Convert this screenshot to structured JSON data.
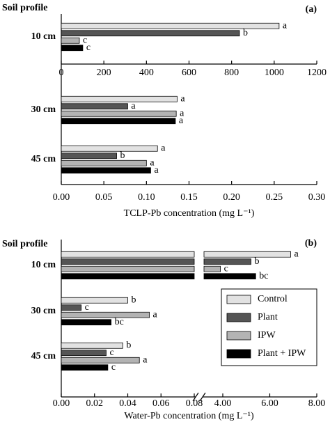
{
  "chart_data": [
    {
      "type": "bar",
      "orientation": "horizontal",
      "title": "(a)",
      "ylabel": "Soil profile",
      "xlabel": "TCLP-Pb concentration (mg L⁻¹)",
      "categories": [
        "10 cm",
        "30 cm",
        "45 cm"
      ],
      "category_axis": [
        "x2",
        "x",
        "x"
      ],
      "xlim": [
        0,
        0.3
      ],
      "xticks": [
        {
          "value": 0,
          "label": "0.00"
        },
        {
          "value": 0.05,
          "label": "0.05"
        },
        {
          "value": 0.1,
          "label": "0.10"
        },
        {
          "value": 0.15,
          "label": "0.15"
        },
        {
          "value": 0.2,
          "label": "0.20"
        },
        {
          "value": 0.25,
          "label": "0.25"
        },
        {
          "value": 0.3,
          "label": "0.30"
        }
      ],
      "x2lim": [
        0,
        1200
      ],
      "x2ticks": [
        0,
        200,
        400,
        600,
        800,
        1000,
        1200
      ],
      "series": [
        {
          "color": "#e2e2e2",
          "values": [
            1023,
            0.136,
            0.113
          ],
          "letters": [
            "a",
            "a",
            "a"
          ]
        },
        {
          "color": "#555555",
          "values": [
            837,
            0.078,
            0.065
          ],
          "letters": [
            "b",
            "a",
            "b"
          ]
        },
        {
          "color": "#b3b3b3",
          "values": [
            85,
            0.135,
            0.1
          ],
          "letters": [
            "c",
            "a",
            "a"
          ]
        },
        {
          "color": "#000000",
          "values": [
            101,
            0.134,
            0.105
          ],
          "letters": [
            "c",
            "a",
            "a"
          ]
        }
      ]
    },
    {
      "type": "bar",
      "orientation": "horizontal",
      "title": "(b)",
      "ylabel": "Soil profile",
      "xlabel": "Water-Pb concentration (mg L⁻¹)",
      "categories": [
        "10 cm",
        "30 cm",
        "45 cm"
      ],
      "category_axis": [
        "x2",
        "x",
        "x"
      ],
      "broken_axis": true,
      "xlim": [
        0,
        0.08
      ],
      "xticks": [
        {
          "value": 0,
          "label": "0.00"
        },
        {
          "value": 0.02,
          "label": "0.02"
        },
        {
          "value": 0.04,
          "label": "0.04"
        },
        {
          "value": 0.06,
          "label": "0.06"
        },
        {
          "value": 0.08,
          "label": "0.08"
        }
      ],
      "x2lim": [
        3.2,
        8
      ],
      "x2ticks": [
        {
          "value": 4,
          "label": "4.00"
        },
        {
          "value": 6,
          "label": "6.00"
        },
        {
          "value": 8,
          "label": "8.00"
        }
      ],
      "legend": "lower right",
      "series": [
        {
          "name": "Control",
          "color": "#e2e2e2",
          "values": [
            6.89,
            0.04,
            0.037
          ],
          "letters": [
            "a",
            "b",
            "b"
          ]
        },
        {
          "name": "Plant",
          "color": "#555555",
          "values": [
            5.2,
            0.012,
            0.027
          ],
          "letters": [
            "b",
            "c",
            "c"
          ]
        },
        {
          "name": "IPW",
          "color": "#b3b3b3",
          "values": [
            3.9,
            0.053,
            0.047
          ],
          "letters": [
            "c",
            "a",
            "a"
          ]
        },
        {
          "name": "Plant + IPW",
          "color": "#000000",
          "values": [
            5.4,
            0.03,
            0.028
          ],
          "letters": [
            "bc",
            "bc",
            "c"
          ]
        }
      ]
    }
  ]
}
